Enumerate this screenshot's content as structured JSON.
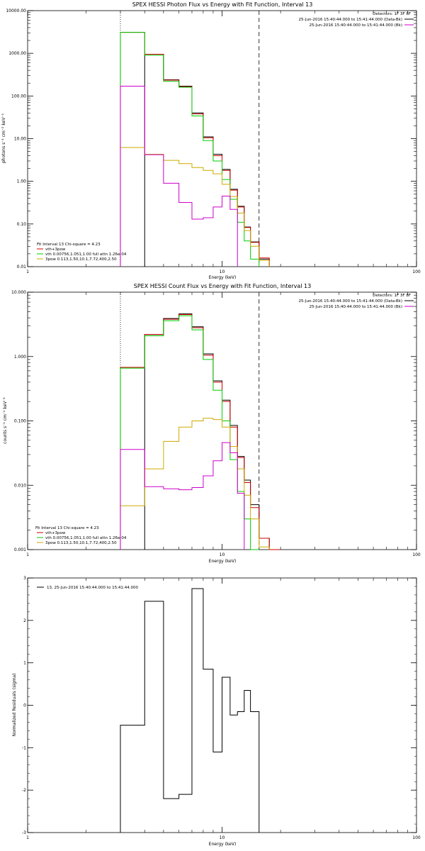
{
  "chart_data": [
    {
      "type": "line",
      "title": "SPEX HESSI Photon Flux vs Energy with Fit Function, Interval 13",
      "xlabel": "Energy (keV)",
      "ylabel": "photons s⁻¹ cm⁻² keV⁻¹",
      "xscale": "log",
      "yscale": "log",
      "xlim": [
        1,
        100
      ],
      "ylim": [
        0.01,
        10000
      ],
      "x_ticks": [
        "1",
        "10",
        "100"
      ],
      "y_ticks": [
        "0.01",
        "0.10",
        "1.00",
        "10.00",
        "100.00",
        "1000.00",
        "10000.00"
      ],
      "detectors": "Detectors: 1F 3F 8F",
      "legend": [
        {
          "label": "25-Jun-2016 15:40:44.000 to 15:41:44.000 (Data-Bk)",
          "color": "#000000"
        },
        {
          "label": "25-Jun-2016 15:40:44.000 to 15:41:44.000 (Bk)",
          "color": "#cc00cc"
        }
      ],
      "fit_legend": {
        "header": "Fit Interval 13   Chi-square = 4.23",
        "items": [
          {
            "label": "vth+3pow",
            "color": "#cc0000"
          },
          {
            "label": "vth 0.00756,1.051,1.00  full attn 1.26e-04",
            "color": "#00cc00"
          },
          {
            "label": "3pow 0.113,1.50,10.1,7.72,400,2.50",
            "color": "#ccaa00"
          }
        ]
      },
      "fit_range_keV": [
        3.0,
        15.5
      ],
      "series": [
        {
          "name": "Data-Bk",
          "color": "#000000",
          "edges": [
            3.0,
            4.0,
            5.0,
            6.0,
            7.0,
            8.0,
            9.0,
            10.0,
            11.0,
            12.0,
            13.0,
            14.0,
            15.5,
            17.5
          ],
          "values": [
            null,
            950,
            240,
            170,
            40,
            11,
            4.3,
            1.9,
            0.65,
            0.26,
            0.085,
            0.038,
            0.015
          ]
        },
        {
          "name": "vth+3pow",
          "color": "#cc0000",
          "edges": [
            3.0,
            4.0,
            5.0,
            6.0,
            7.0,
            8.0,
            9.0,
            10.0,
            11.0,
            12.0,
            13.0,
            14.0,
            15.5,
            17.5
          ],
          "values": [
            3100,
            950,
            235,
            165,
            38,
            10.5,
            4.0,
            1.8,
            0.62,
            0.25,
            0.083,
            0.037,
            0.016
          ]
        },
        {
          "name": "vth",
          "color": "#00cc00",
          "edges": [
            3.0,
            4.0,
            5.0,
            6.0,
            7.0,
            8.0,
            9.0,
            10.0,
            11.0,
            12.0,
            13.0,
            14.0,
            15.5
          ],
          "values": [
            3100,
            900,
            220,
            160,
            34,
            9,
            3.0,
            1.1,
            0.38,
            0.11,
            0.04,
            0.015
          ]
        },
        {
          "name": "3pow",
          "color": "#ccaa00",
          "edges": [
            3.0,
            4.0,
            5.0,
            6.0,
            7.0,
            8.0,
            9.0,
            10.0,
            11.0,
            12.0,
            13.0,
            14.0,
            15.5,
            17.5
          ],
          "values": [
            6.2,
            4.3,
            3.1,
            2.6,
            2.1,
            1.8,
            1.5,
            0.85,
            0.44,
            0.18,
            0.07,
            0.03,
            0.014
          ]
        },
        {
          "name": "Bk",
          "color": "#cc00cc",
          "edges": [
            3.0,
            4.0,
            5.0,
            6.0,
            7.0,
            8.0,
            9.0,
            10.0,
            11.0,
            12.0
          ],
          "values": [
            170,
            4.2,
            0.9,
            0.32,
            0.13,
            0.14,
            0.25,
            0.45,
            0.22
          ]
        }
      ]
    },
    {
      "type": "line",
      "title": "SPEX HESSI Count Flux vs Energy with Fit Function, Interval 13",
      "xlabel": "Energy (keV)",
      "ylabel": "counts s⁻¹ cm⁻² keV⁻¹",
      "xscale": "log",
      "yscale": "log",
      "xlim": [
        1,
        100
      ],
      "ylim": [
        0.001,
        10
      ],
      "x_ticks": [
        "1",
        "10",
        "100"
      ],
      "y_ticks": [
        "0.001",
        "0.010",
        "0.100",
        "1.000",
        "10.000"
      ],
      "detectors": "Detectors: 1F 3F 8F",
      "legend": [
        {
          "label": "25-Jun-2016 15:40:44.000 to 15:41:44.000 (Data-Bk)",
          "color": "#000000"
        },
        {
          "label": "25-Jun-2016 15:40:44.000 to 15:41:44.000 (Bk)",
          "color": "#cc00cc"
        }
      ],
      "fit_legend": {
        "header": "Fit Interval 13   Chi-square = 4.23",
        "items": [
          {
            "label": "vth+3pow",
            "color": "#cc0000"
          },
          {
            "label": "vth 0.00756,1.051,1.00  full attn 1.26e-04",
            "color": "#00cc00"
          },
          {
            "label": "3pow 0.113,1.50,10.1,7.72,400,2.50",
            "color": "#ccaa00"
          }
        ]
      },
      "fit_range_keV": [
        3.0,
        15.5
      ],
      "series": [
        {
          "name": "Data-Bk",
          "color": "#000000",
          "edges": [
            3.0,
            4.0,
            5.0,
            6.0,
            7.0,
            8.0,
            9.0,
            10.0,
            11.0,
            12.0,
            13.0,
            14.0,
            15.5,
            17.5,
            20.0
          ],
          "values": [
            null,
            2.2,
            3.9,
            4.6,
            2.9,
            1.1,
            0.42,
            0.21,
            0.085,
            0.028,
            0.012,
            0.005,
            0.0015,
            0.001
          ]
        },
        {
          "name": "vth+3pow",
          "color": "#cc0000",
          "edges": [
            3.0,
            4.0,
            5.0,
            6.0,
            7.0,
            8.0,
            9.0,
            10.0,
            11.0,
            12.0,
            13.0,
            14.0,
            15.5,
            17.5,
            20.0
          ],
          "values": [
            0.68,
            2.2,
            3.8,
            4.5,
            2.8,
            1.05,
            0.4,
            0.2,
            0.08,
            0.027,
            0.011,
            0.0045,
            0.0015,
            0.001
          ]
        },
        {
          "name": "vth",
          "color": "#00cc00",
          "edges": [
            3.0,
            4.0,
            5.0,
            6.0,
            7.0,
            8.0,
            9.0,
            10.0,
            11.0,
            12.0,
            13.0,
            14.0,
            15.5
          ],
          "values": [
            0.66,
            2.1,
            3.6,
            4.3,
            2.6,
            0.9,
            0.3,
            0.1,
            0.025,
            0.008,
            0.003,
            0.001
          ]
        },
        {
          "name": "3pow",
          "color": "#ccaa00",
          "edges": [
            3.0,
            4.0,
            5.0,
            6.0,
            7.0,
            8.0,
            9.0,
            10.0,
            11.0,
            12.0,
            13.0,
            14.0,
            15.5,
            17.5
          ],
          "values": [
            0.0048,
            0.018,
            0.048,
            0.08,
            0.1,
            0.11,
            0.105,
            0.08,
            0.04,
            0.018,
            0.007,
            0.003,
            0.0011
          ]
        },
        {
          "name": "Bk",
          "color": "#cc00cc",
          "edges": [
            3.0,
            4.0,
            5.0,
            6.0,
            7.0,
            8.0,
            9.0,
            10.0,
            11.0,
            12.0,
            13.0
          ],
          "values": [
            0.036,
            0.0095,
            0.0088,
            0.0085,
            0.0092,
            0.014,
            0.024,
            0.046,
            0.032,
            0.0075
          ]
        }
      ]
    },
    {
      "type": "line",
      "title": "",
      "xlabel": "Energy (keV)",
      "ylabel": "Normalized Residuals (sigma)",
      "xscale": "log",
      "yscale": "linear",
      "xlim": [
        1,
        100
      ],
      "ylim": [
        -3,
        3
      ],
      "x_ticks": [
        "1",
        "10",
        "100"
      ],
      "y_ticks": [
        "-3",
        "-2",
        "-1",
        "0",
        "1",
        "2",
        "3"
      ],
      "legend": [
        {
          "label": "13, 25-Jun-2016 15:40:44.000 to 15:41:44.000",
          "color": "#000000"
        }
      ],
      "series": [
        {
          "name": "13, 25-Jun-2016 15:40:44.000 to 15:41:44.000",
          "color": "#000000",
          "edges": [
            3.0,
            4.0,
            5.0,
            6.0,
            7.0,
            8.0,
            9.0,
            10.0,
            11.0,
            12.0,
            13.0,
            14.0,
            15.5
          ],
          "values": [
            -0.47,
            2.45,
            -2.2,
            -2.1,
            2.75,
            0.85,
            -1.1,
            0.66,
            -0.23,
            -0.15,
            0.35,
            -0.15
          ]
        }
      ]
    }
  ]
}
